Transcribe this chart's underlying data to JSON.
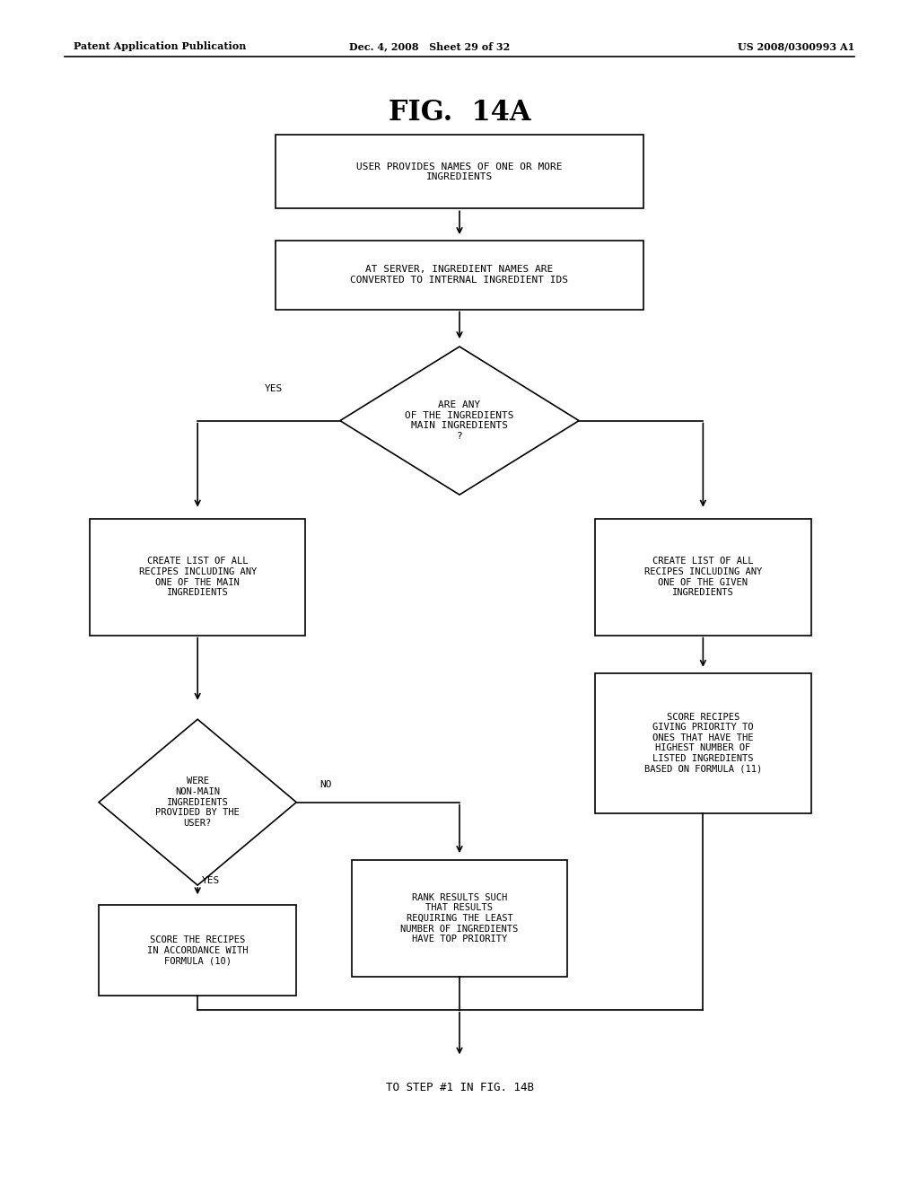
{
  "title": "FIG.  14A",
  "header_left": "Patent Application Publication",
  "header_center": "Dec. 4, 2008   Sheet 29 of 32",
  "header_right": "US 2008/0300993 A1",
  "footer": "TO STEP #1 IN FIG. 14B",
  "background_color": "#ffffff"
}
